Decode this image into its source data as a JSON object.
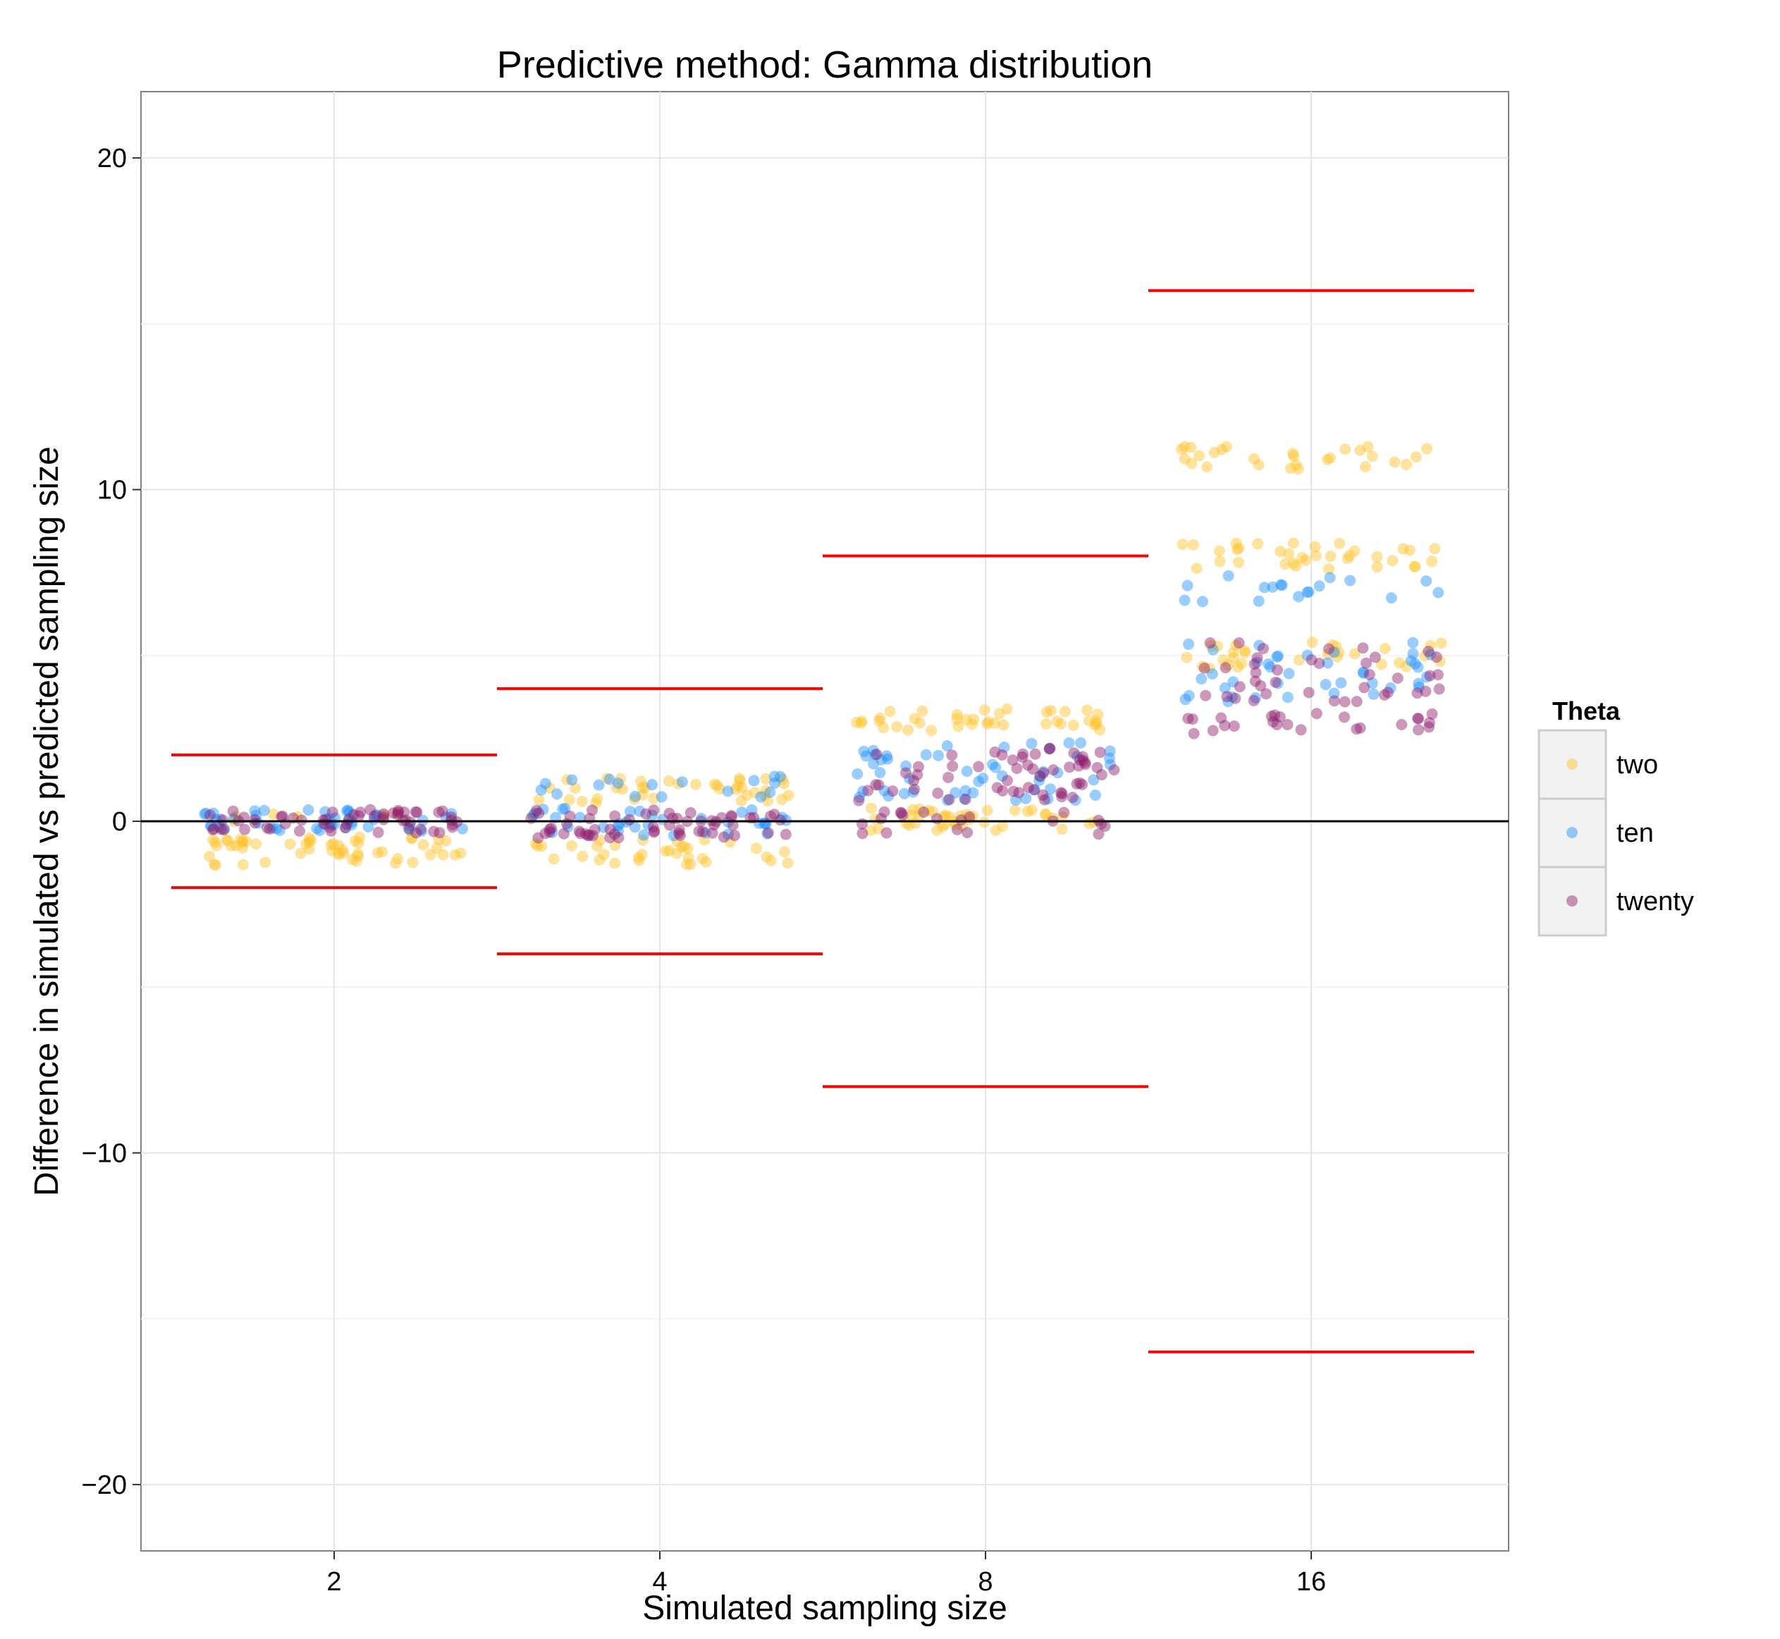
{
  "chart_data": {
    "type": "scatter",
    "title": "Predictive method: Gamma distribution",
    "xlabel": "Simulated sampling size",
    "ylabel": "Difference in simulated vs predicted sampling size",
    "categories": [
      "2",
      "4",
      "8",
      "16"
    ],
    "category_values": [
      2,
      4,
      8,
      16
    ],
    "ylim": [
      -22,
      22
    ],
    "yticks": [
      -20,
      -10,
      0,
      10,
      20
    ],
    "ytick_labels": [
      "−20",
      "−10",
      "0",
      "10",
      "20"
    ],
    "grid": true,
    "reference_line": {
      "y": 0,
      "color": "#000000"
    },
    "bound_lines": {
      "color": "#ff0000",
      "upper": [
        2,
        4,
        8,
        16
      ],
      "lower": [
        -2,
        -4,
        -8,
        -16
      ]
    },
    "legend": {
      "title": "Theta",
      "position": "right",
      "entries": [
        {
          "label": "two",
          "color": "#FFC125"
        },
        {
          "label": "ten",
          "color": "#1E90FF"
        },
        {
          "label": "twenty",
          "color": "#8B1A6B"
        }
      ]
    },
    "series": [
      {
        "name": "two",
        "color": "#FFC125",
        "groups": [
          {
            "category": "2",
            "bands": [
              {
                "y": [
                  -1.35,
                  -0.45
                ],
                "n": 55
              },
              {
                "y": [
                  -0.15,
                  0.25
                ],
                "n": 6
              }
            ]
          },
          {
            "category": "4",
            "bands": [
              {
                "y": [
                  -1.35,
                  -0.55
                ],
                "n": 35
              },
              {
                "y": [
                  0.5,
                  1.3
                ],
                "n": 40
              }
            ]
          },
          {
            "category": "8",
            "bands": [
              {
                "y": [
                  -0.35,
                  0.4
                ],
                "n": 40
              },
              {
                "y": [
                  2.7,
                  3.4
                ],
                "n": 40
              }
            ]
          },
          {
            "category": "16",
            "bands": [
              {
                "y": [
                  4.6,
                  5.4
                ],
                "n": 30
              },
              {
                "y": [
                  7.6,
                  8.4
                ],
                "n": 35
              },
              {
                "y": [
                  10.6,
                  11.4
                ],
                "n": 28
              }
            ]
          }
        ]
      },
      {
        "name": "ten",
        "color": "#1E90FF",
        "groups": [
          {
            "category": "2",
            "bands": [
              {
                "y": [
                  -0.3,
                  0.4
                ],
                "n": 45
              }
            ]
          },
          {
            "category": "4",
            "bands": [
              {
                "y": [
                  -0.45,
                  0.4
                ],
                "n": 35
              },
              {
                "y": [
                  0.7,
                  1.35
                ],
                "n": 18
              }
            ]
          },
          {
            "category": "8",
            "bands": [
              {
                "y": [
                  0.6,
                  1.0
                ],
                "n": 18
              },
              {
                "y": [
                  1.2,
                  2.4
                ],
                "n": 35
              }
            ]
          },
          {
            "category": "16",
            "bands": [
              {
                "y": [
                  3.6,
                  5.5
                ],
                "n": 40
              },
              {
                "y": [
                  6.6,
                  7.5
                ],
                "n": 18
              }
            ]
          }
        ]
      },
      {
        "name": "twenty",
        "color": "#8B1A6B",
        "groups": [
          {
            "category": "2",
            "bands": [
              {
                "y": [
                  -0.35,
                  0.35
                ],
                "n": 60
              }
            ]
          },
          {
            "category": "4",
            "bands": [
              {
                "y": [
                  -0.5,
                  0.35
                ],
                "n": 60
              }
            ]
          },
          {
            "category": "8",
            "bands": [
              {
                "y": [
                  -0.4,
                  0.3
                ],
                "n": 20
              },
              {
                "y": [
                  0.6,
                  2.2
                ],
                "n": 60
              }
            ]
          },
          {
            "category": "16",
            "bands": [
              {
                "y": [
                  2.6,
                  3.3
                ],
                "n": 25
              },
              {
                "y": [
                  3.6,
                  5.4
                ],
                "n": 40
              }
            ]
          }
        ]
      }
    ]
  }
}
